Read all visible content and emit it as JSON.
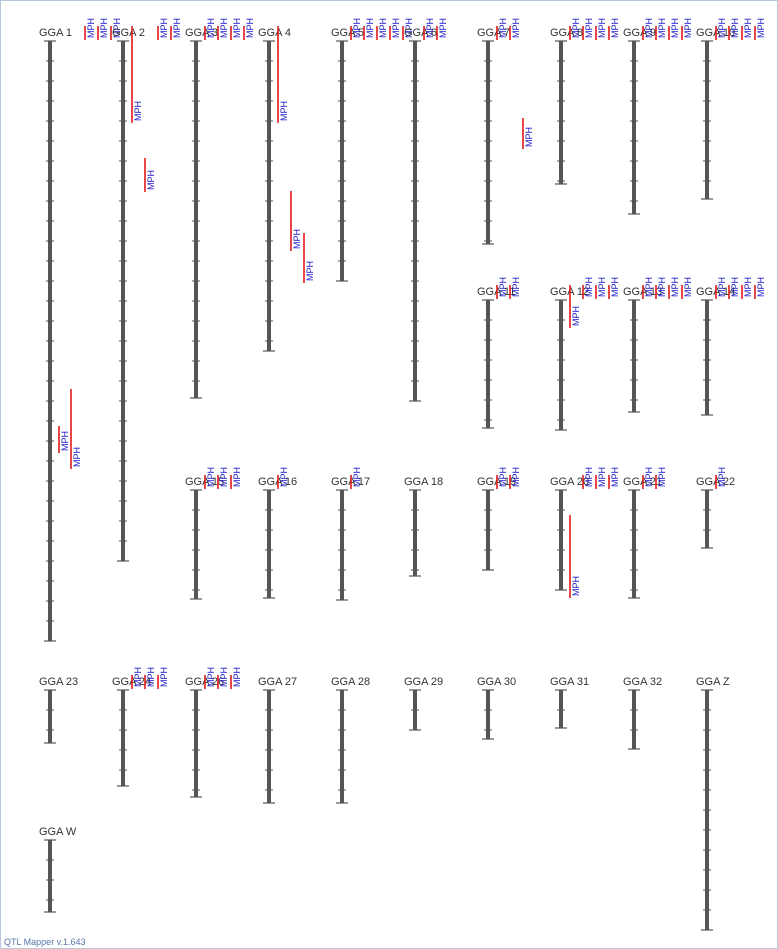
{
  "footer": "QTL Mapper v.1.643",
  "colors": {
    "chromosome": "#555555",
    "qtl_bar": "#e01a1a",
    "qtl_label": "#1a1acc",
    "chr_label": "#333333"
  },
  "chromosomes": [
    {
      "name": "GGA 1",
      "length": 600,
      "qtls": [
        {
          "label": "MPH",
          "start": 0,
          "end": 14
        },
        {
          "label": "MPH",
          "start": 0,
          "end": 14
        },
        {
          "label": "MPH",
          "start": 0,
          "end": 14
        },
        {
          "label": "MPH",
          "start": 385,
          "end": 412
        },
        {
          "label": "MPH",
          "start": 348,
          "end": 428
        }
      ]
    },
    {
      "name": "GGA 2",
      "length": 520,
      "qtls": [
        {
          "label": "MPH",
          "start": 0,
          "end": 97
        },
        {
          "label": "MPH",
          "start": 117,
          "end": 151
        },
        {
          "label": "MPH",
          "start": 0,
          "end": 14
        },
        {
          "label": "MPH",
          "start": 0,
          "end": 14
        }
      ]
    },
    {
      "name": "GGA 3",
      "length": 357,
      "qtls": [
        {
          "label": "MPH",
          "start": 0,
          "end": 14
        },
        {
          "label": "MPH",
          "start": 0,
          "end": 14
        },
        {
          "label": "MPH",
          "start": 0,
          "end": 14
        },
        {
          "label": "MPH",
          "start": 0,
          "end": 14
        }
      ]
    },
    {
      "name": "GGA 4",
      "length": 310,
      "qtls": [
        {
          "label": "MPH",
          "start": 0,
          "end": 97
        },
        {
          "label": "MPH",
          "start": 150,
          "end": 210
        },
        {
          "label": "MPH",
          "start": 192,
          "end": 242
        }
      ]
    },
    {
      "name": "GGA 5",
      "length": 240,
      "qtls": [
        {
          "label": "MPH",
          "start": 0,
          "end": 14
        },
        {
          "label": "MPH",
          "start": 0,
          "end": 14
        },
        {
          "label": "MPH",
          "start": 0,
          "end": 14
        },
        {
          "label": "MPH",
          "start": 0,
          "end": 14
        },
        {
          "label": "MPH",
          "start": 0,
          "end": 14
        }
      ]
    },
    {
      "name": "GGA 6",
      "length": 360,
      "qtls": [
        {
          "label": "MPH",
          "start": 0,
          "end": 14
        },
        {
          "label": "MPH",
          "start": 0,
          "end": 14
        }
      ]
    },
    {
      "name": "GGA 7",
      "length": 203,
      "qtls": [
        {
          "label": "MPH",
          "start": 0,
          "end": 14
        },
        {
          "label": "MPH",
          "start": 0,
          "end": 14
        },
        {
          "label": "MPH",
          "start": 77,
          "end": 108
        }
      ]
    },
    {
      "name": "GGA 8",
      "length": 143,
      "qtls": [
        {
          "label": "MPH",
          "start": 0,
          "end": 14
        },
        {
          "label": "MPH",
          "start": 0,
          "end": 14
        },
        {
          "label": "MPH",
          "start": 0,
          "end": 14
        },
        {
          "label": "MPH",
          "start": 0,
          "end": 14
        }
      ]
    },
    {
      "name": "GGA 9",
      "length": 173,
      "qtls": [
        {
          "label": "MPH",
          "start": 0,
          "end": 14
        },
        {
          "label": "MPH",
          "start": 0,
          "end": 14
        },
        {
          "label": "MPH",
          "start": 0,
          "end": 14
        },
        {
          "label": "MPH",
          "start": 0,
          "end": 14
        }
      ]
    },
    {
      "name": "GGA 10",
      "length": 158,
      "qtls": [
        {
          "label": "MPH",
          "start": 0,
          "end": 14
        },
        {
          "label": "MPH",
          "start": 0,
          "end": 14
        },
        {
          "label": "MPH",
          "start": 0,
          "end": 14
        },
        {
          "label": "MPH",
          "start": 0,
          "end": 14
        }
      ]
    },
    {
      "name": "GGA 11",
      "length": 128,
      "qtls": [
        {
          "label": "MPH",
          "start": 0,
          "end": 14
        },
        {
          "label": "MPH",
          "start": 0,
          "end": 14
        }
      ]
    },
    {
      "name": "GGA 12",
      "length": 130,
      "qtls": [
        {
          "label": "MPH",
          "start": 0,
          "end": 43
        },
        {
          "label": "MPH",
          "start": 0,
          "end": 14
        },
        {
          "label": "MPH",
          "start": 0,
          "end": 14
        },
        {
          "label": "MPH",
          "start": 0,
          "end": 14
        }
      ]
    },
    {
      "name": "GGA 13",
      "length": 112,
      "qtls": [
        {
          "label": "MPH",
          "start": 0,
          "end": 14
        },
        {
          "label": "MPH",
          "start": 0,
          "end": 14
        },
        {
          "label": "MPH",
          "start": 0,
          "end": 14
        },
        {
          "label": "MPH",
          "start": 0,
          "end": 14
        }
      ]
    },
    {
      "name": "GGA 14",
      "length": 115,
      "qtls": [
        {
          "label": "MPH",
          "start": 0,
          "end": 14
        },
        {
          "label": "MPH",
          "start": 0,
          "end": 14
        },
        {
          "label": "MPH",
          "start": 0,
          "end": 14
        },
        {
          "label": "MPH",
          "start": 0,
          "end": 14
        }
      ]
    },
    {
      "name": "GGA 15",
      "length": 109,
      "qtls": [
        {
          "label": "MPH",
          "start": 0,
          "end": 14
        },
        {
          "label": "MPH",
          "start": 0,
          "end": 14
        },
        {
          "label": "MPH",
          "start": 0,
          "end": 14
        }
      ]
    },
    {
      "name": "GGA 16",
      "length": 108,
      "qtls": [
        {
          "label": "MPH",
          "start": 0,
          "end": 14
        }
      ]
    },
    {
      "name": "GGA 17",
      "length": 110,
      "qtls": [
        {
          "label": "MPH",
          "start": 0,
          "end": 14
        }
      ]
    },
    {
      "name": "GGA 18",
      "length": 86,
      "qtls": []
    },
    {
      "name": "GGA 19",
      "length": 80,
      "qtls": [
        {
          "label": "MPH",
          "start": 0,
          "end": 14
        },
        {
          "label": "MPH",
          "start": 0,
          "end": 14
        }
      ]
    },
    {
      "name": "GGA 20",
      "length": 100,
      "qtls": [
        {
          "label": "MPH",
          "start": 25,
          "end": 108
        },
        {
          "label": "MPH",
          "start": 0,
          "end": 14
        },
        {
          "label": "MPH",
          "start": 0,
          "end": 14
        },
        {
          "label": "MPH",
          "start": 0,
          "end": 14
        }
      ]
    },
    {
      "name": "GGA 21",
      "length": 108,
      "qtls": [
        {
          "label": "MPH",
          "start": 0,
          "end": 14
        },
        {
          "label": "MPH",
          "start": 0,
          "end": 14
        }
      ]
    },
    {
      "name": "GGA 22",
      "length": 58,
      "qtls": [
        {
          "label": "MPH",
          "start": 0,
          "end": 14
        }
      ]
    },
    {
      "name": "GGA 23",
      "length": 53,
      "qtls": []
    },
    {
      "name": "GGA 24",
      "length": 96,
      "qtls": [
        {
          "label": "MPH",
          "start": 0,
          "end": 14
        },
        {
          "label": "MPH",
          "start": 0,
          "end": 14
        },
        {
          "label": "MPH",
          "start": 0,
          "end": 14
        }
      ]
    },
    {
      "name": "GGA 26",
      "length": 107,
      "qtls": [
        {
          "label": "MPH",
          "start": 0,
          "end": 14
        },
        {
          "label": "MPH",
          "start": 0,
          "end": 14
        },
        {
          "label": "MPH",
          "start": 0,
          "end": 14
        }
      ]
    },
    {
      "name": "GGA 27",
      "length": 113,
      "qtls": []
    },
    {
      "name": "GGA 28",
      "length": 113,
      "qtls": []
    },
    {
      "name": "GGA 29",
      "length": 40,
      "qtls": []
    },
    {
      "name": "GGA 30",
      "length": 49,
      "qtls": []
    },
    {
      "name": "GGA 31",
      "length": 38,
      "qtls": []
    },
    {
      "name": "GGA 32",
      "length": 59,
      "qtls": []
    },
    {
      "name": "GGA Z",
      "length": 240,
      "qtls": []
    },
    {
      "name": "GGA W",
      "length": 72,
      "qtls": []
    }
  ]
}
